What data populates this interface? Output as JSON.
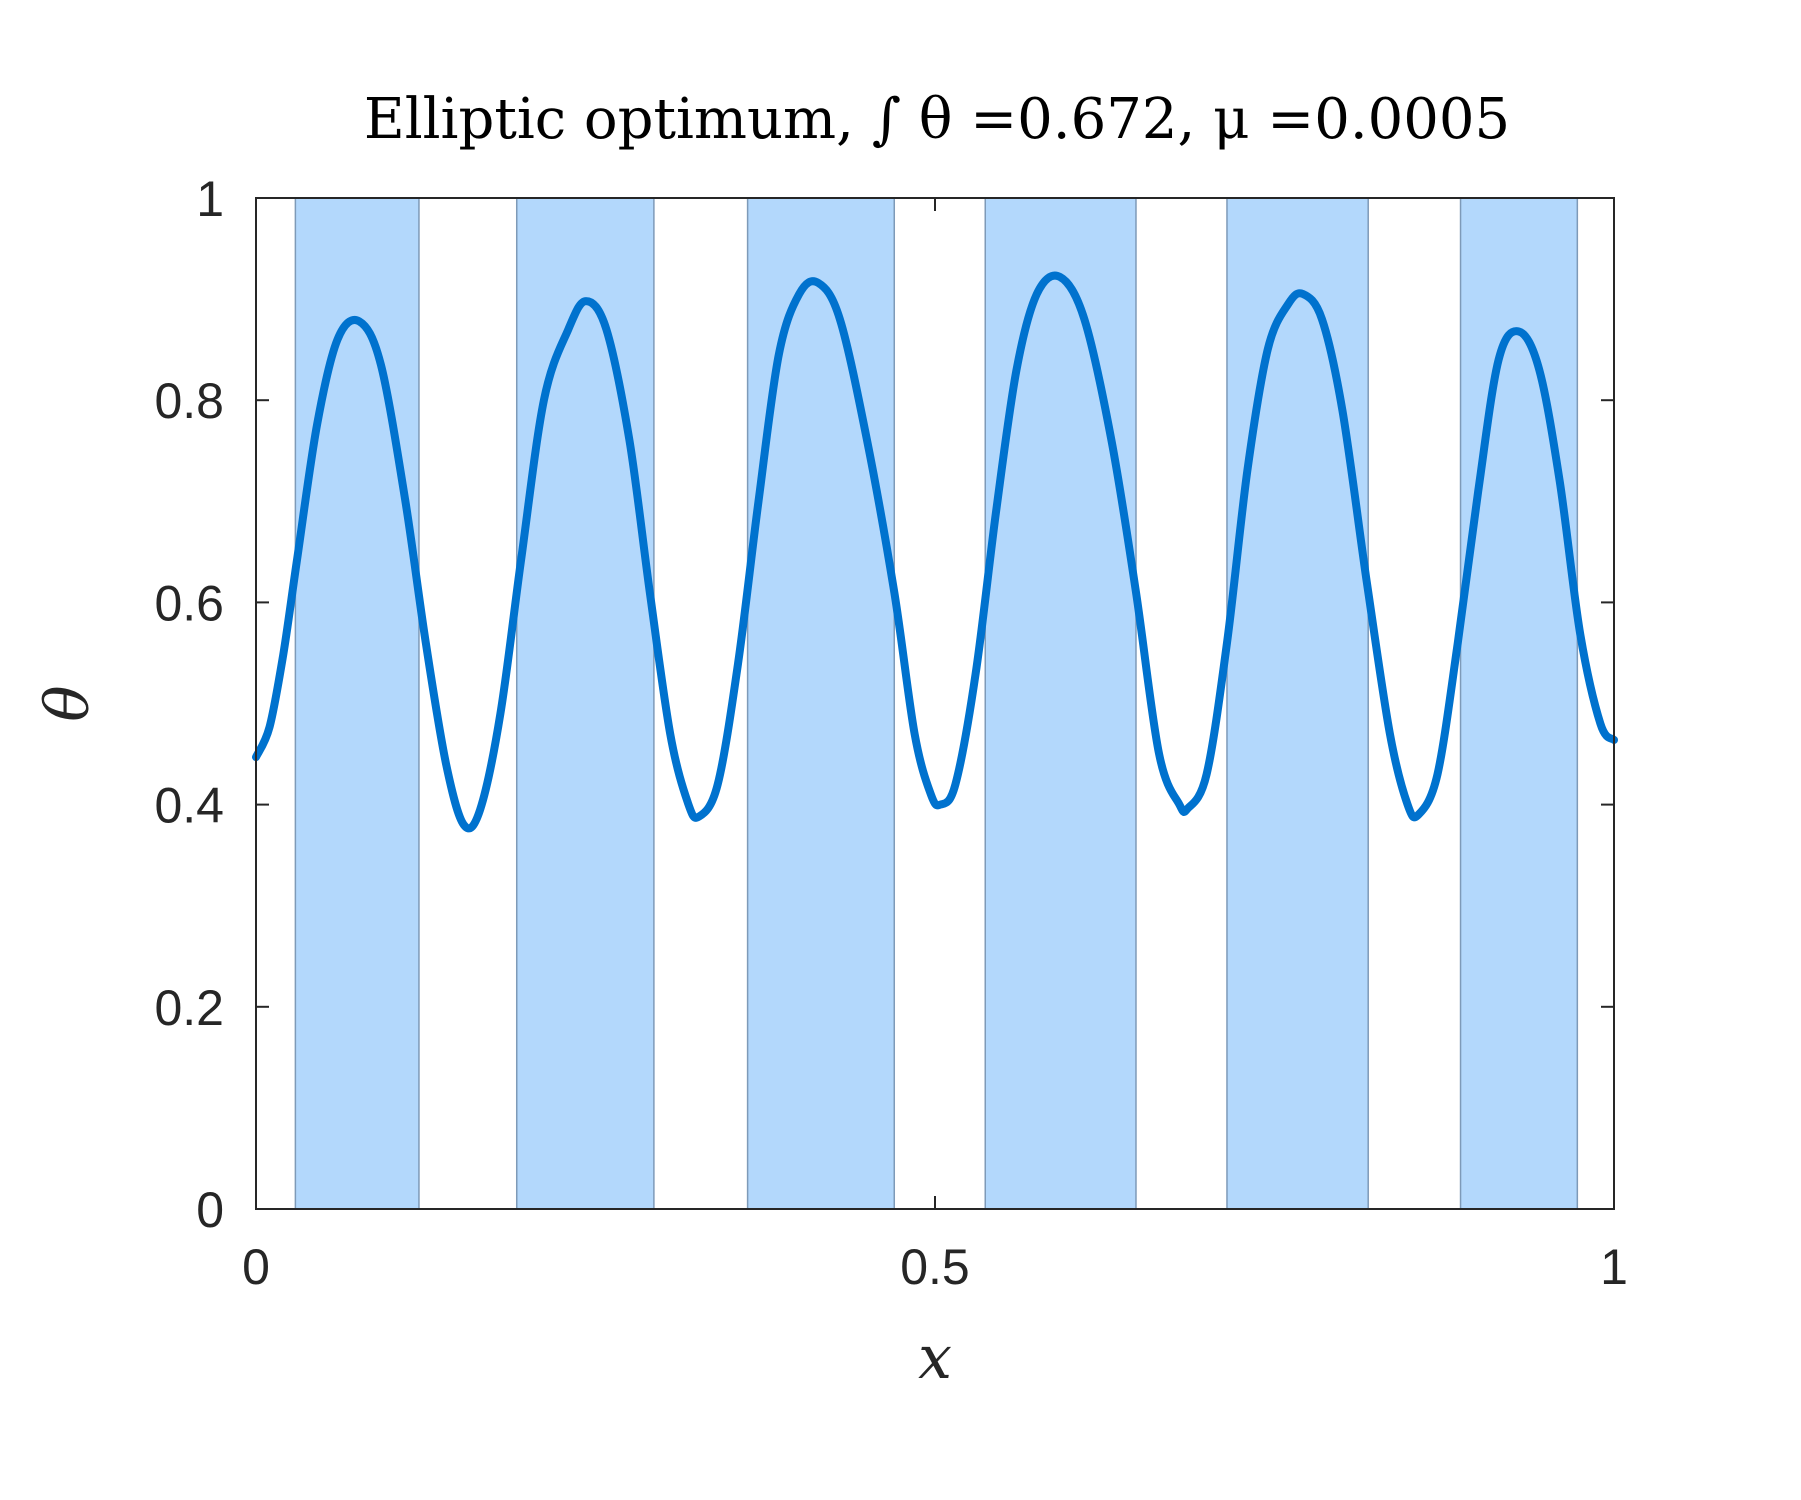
{
  "chart_data": {
    "type": "line",
    "title": "Elliptic optimum, ∫ θ =0.672, μ =0.0005",
    "xlabel": "x",
    "ylabel": "θ",
    "xlim": [
      0,
      1
    ],
    "ylim": [
      0,
      1
    ],
    "x_ticks": [
      0,
      0.5,
      1
    ],
    "x_tick_labels": [
      "0",
      "0.5",
      "1"
    ],
    "y_ticks": [
      0,
      0.2,
      0.4,
      0.6,
      0.8,
      1
    ],
    "y_tick_labels": [
      "0",
      "0.2",
      "0.4",
      "0.6",
      "0.8",
      "1"
    ],
    "grid": false,
    "legend": "none",
    "bands": [
      {
        "x0": 0.029,
        "x1": 0.12
      },
      {
        "x0": 0.192,
        "x1": 0.293
      },
      {
        "x0": 0.362,
        "x1": 0.47
      },
      {
        "x0": 0.537,
        "x1": 0.648
      },
      {
        "x0": 0.715,
        "x1": 0.819
      },
      {
        "x0": 0.887,
        "x1": 0.973
      }
    ],
    "series": [
      {
        "points": [
          [
            0.0,
            0.447
          ],
          [
            0.01,
            0.477
          ],
          [
            0.02,
            0.548
          ],
          [
            0.03,
            0.64
          ],
          [
            0.045,
            0.776
          ],
          [
            0.06,
            0.86
          ],
          [
            0.076,
            0.878
          ],
          [
            0.092,
            0.835
          ],
          [
            0.11,
            0.7
          ],
          [
            0.125,
            0.56
          ],
          [
            0.14,
            0.44
          ],
          [
            0.153,
            0.38
          ],
          [
            0.165,
            0.395
          ],
          [
            0.18,
            0.49
          ],
          [
            0.195,
            0.64
          ],
          [
            0.212,
            0.8
          ],
          [
            0.23,
            0.87
          ],
          [
            0.243,
            0.898
          ],
          [
            0.258,
            0.87
          ],
          [
            0.275,
            0.76
          ],
          [
            0.29,
            0.61
          ],
          [
            0.305,
            0.47
          ],
          [
            0.318,
            0.402
          ],
          [
            0.326,
            0.388
          ],
          [
            0.34,
            0.42
          ],
          [
            0.355,
            0.54
          ],
          [
            0.37,
            0.7
          ],
          [
            0.385,
            0.845
          ],
          [
            0.4,
            0.905
          ],
          [
            0.414,
            0.916
          ],
          [
            0.43,
            0.88
          ],
          [
            0.45,
            0.76
          ],
          [
            0.47,
            0.61
          ],
          [
            0.485,
            0.47
          ],
          [
            0.497,
            0.41
          ],
          [
            0.504,
            0.4
          ],
          [
            0.515,
            0.42
          ],
          [
            0.53,
            0.53
          ],
          [
            0.545,
            0.69
          ],
          [
            0.56,
            0.83
          ],
          [
            0.575,
            0.905
          ],
          [
            0.592,
            0.922
          ],
          [
            0.61,
            0.88
          ],
          [
            0.63,
            0.76
          ],
          [
            0.648,
            0.61
          ],
          [
            0.665,
            0.45
          ],
          [
            0.68,
            0.4
          ],
          [
            0.686,
            0.396
          ],
          [
            0.7,
            0.43
          ],
          [
            0.715,
            0.56
          ],
          [
            0.73,
            0.73
          ],
          [
            0.745,
            0.85
          ],
          [
            0.76,
            0.895
          ],
          [
            0.771,
            0.905
          ],
          [
            0.785,
            0.88
          ],
          [
            0.8,
            0.79
          ],
          [
            0.818,
            0.62
          ],
          [
            0.835,
            0.47
          ],
          [
            0.848,
            0.4
          ],
          [
            0.856,
            0.39
          ],
          [
            0.87,
            0.43
          ],
          [
            0.885,
            0.56
          ],
          [
            0.9,
            0.71
          ],
          [
            0.915,
            0.84
          ],
          [
            0.93,
            0.868
          ],
          [
            0.945,
            0.83
          ],
          [
            0.96,
            0.72
          ],
          [
            0.975,
            0.57
          ],
          [
            0.99,
            0.48
          ],
          [
            1.0,
            0.464
          ]
        ]
      }
    ],
    "colors": {
      "line": "#0072CE",
      "band_fill": "#B3D8FC",
      "band_edge": "#7E9AB8",
      "axes": "#262626"
    }
  }
}
